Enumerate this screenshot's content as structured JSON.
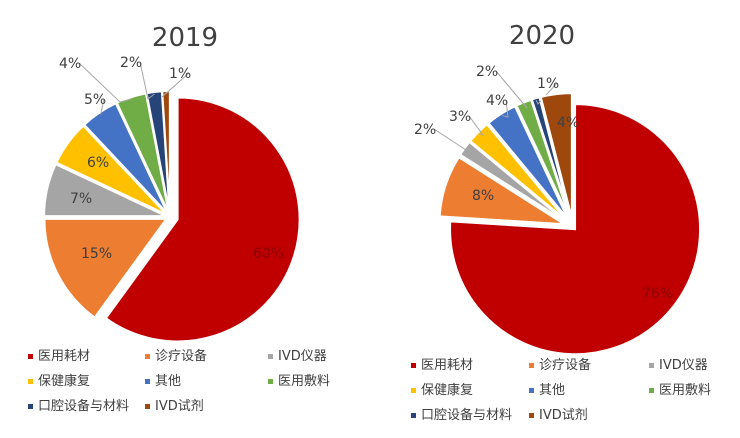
{
  "chart_data": [
    {
      "type": "pie",
      "title": "2019",
      "categories": [
        "医用耗材",
        "诊疗设备",
        "IVD仪器",
        "保健康复",
        "其他",
        "医用敷料",
        "口腔设备与材料",
        "IVD试剂"
      ],
      "values": [
        60,
        15,
        7,
        6,
        5,
        4,
        2,
        1
      ],
      "labels": [
        "60%",
        "15%",
        "7%",
        "6%",
        "5%",
        "4%",
        "2%",
        "1%"
      ],
      "legend_position": "bottom"
    },
    {
      "type": "pie",
      "title": "2020",
      "categories": [
        "医用耗材",
        "诊疗设备",
        "IVD仪器",
        "保健康复",
        "其他",
        "医用敷料",
        "口腔设备与材料",
        "IVD试剂"
      ],
      "values": [
        76,
        8,
        2,
        3,
        4,
        2,
        1,
        4
      ],
      "labels": [
        "76%",
        "8%",
        "2%",
        "3%",
        "4%",
        "2%",
        "1%",
        "4%"
      ],
      "legend_position": "bottom"
    }
  ],
  "series_colors": [
    "#c00000",
    "#ed7d31",
    "#a5a5a5",
    "#ffc000",
    "#4472c4",
    "#70ad47",
    "#264478",
    "#9e480e"
  ]
}
